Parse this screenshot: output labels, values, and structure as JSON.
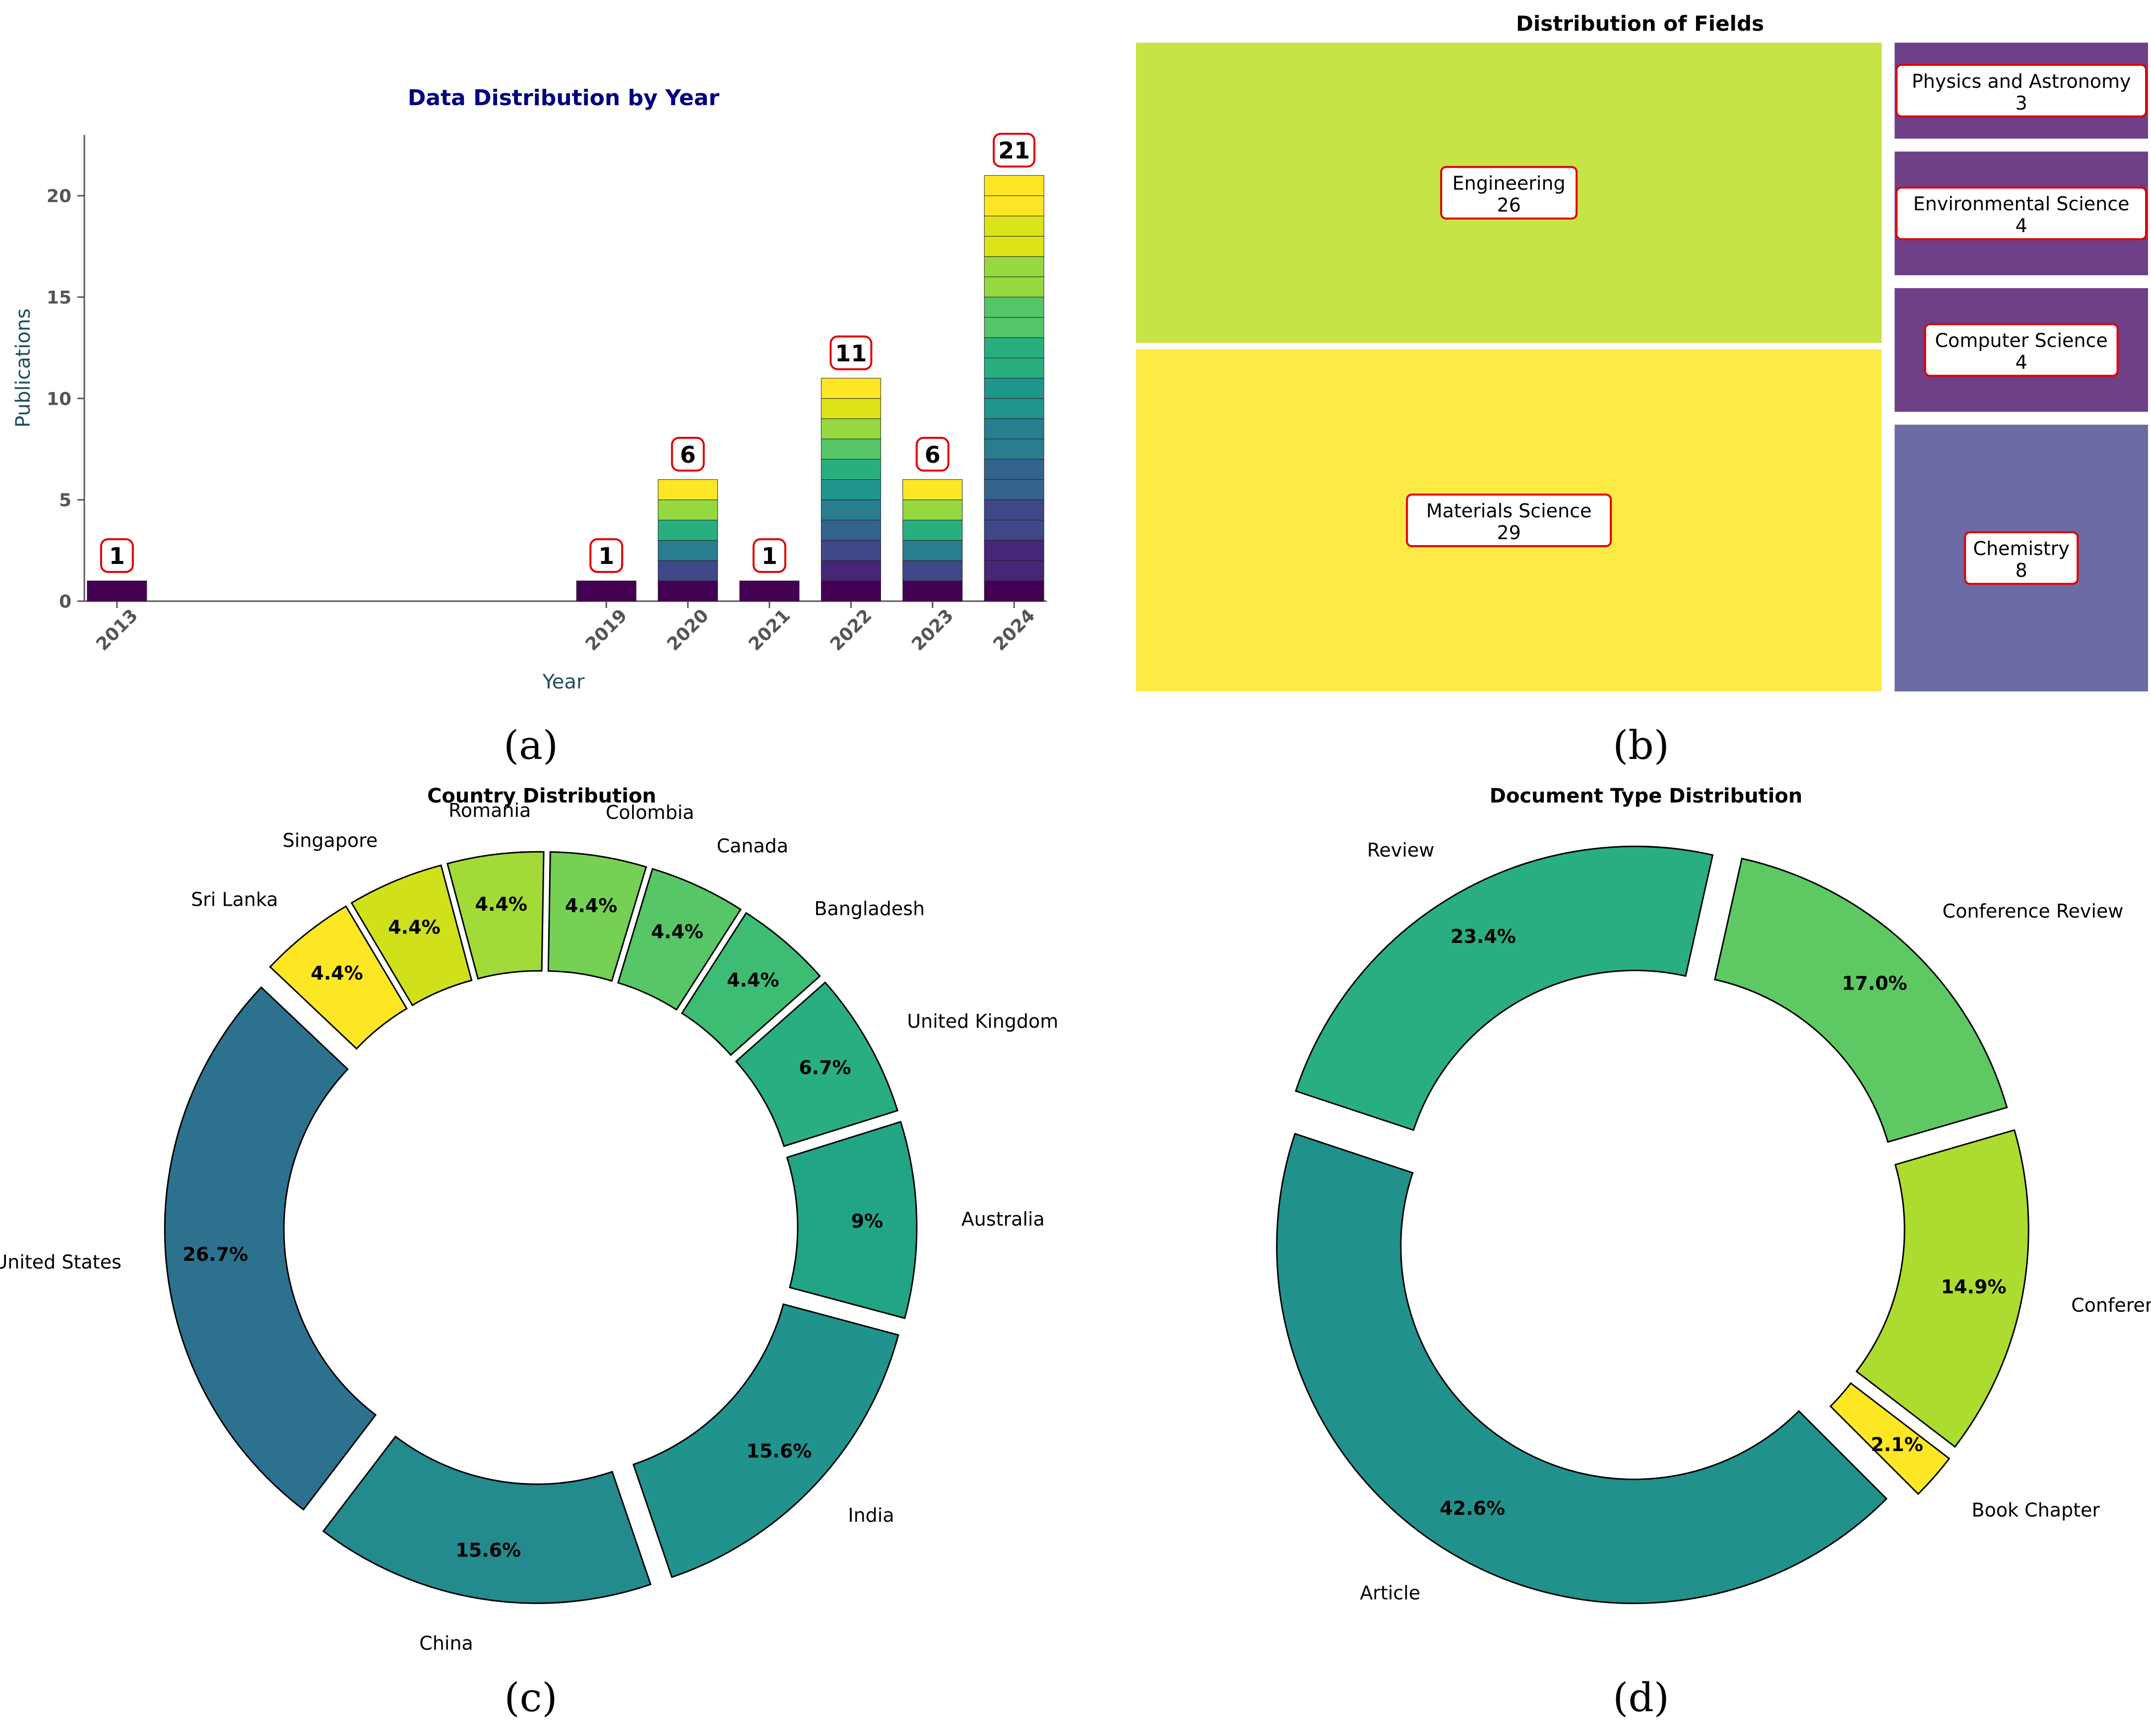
{
  "chart_data": [
    {
      "panel": "(a)",
      "type": "bar",
      "title": "Data Distribution by Year",
      "xlabel": "Year",
      "ylabel": "Publications",
      "categories": [
        "2013",
        "2019",
        "2020",
        "2021",
        "2022",
        "2023",
        "2024"
      ],
      "x": [
        2013,
        2019,
        2020,
        2021,
        2022,
        2023,
        2024
      ],
      "values": [
        1,
        1,
        6,
        1,
        11,
        6,
        21
      ],
      "ylim": [
        0,
        23
      ],
      "yticks": [
        "0",
        "5",
        "10",
        "15",
        "20"
      ],
      "ytick_values": [
        0,
        5,
        10,
        15,
        20
      ],
      "title_color": "#000080",
      "label_color": "#1f4e5f"
    },
    {
      "panel": "(b)",
      "type": "treemap",
      "title": "Distribution of Fields",
      "items": [
        {
          "label": "Materials Science",
          "value": 29,
          "color": "#fde725"
        },
        {
          "label": "Engineering",
          "value": 26,
          "color": "#bddf26"
        },
        {
          "label": "Chemistry",
          "value": 8,
          "color": "#5b5b9b"
        },
        {
          "label": "Computer Science",
          "value": 4,
          "color": "#5f2a7a"
        },
        {
          "label": "Environmental Science",
          "value": 4,
          "color": "#5f2a7a"
        },
        {
          "label": "Physics and Astronomy",
          "value": 3,
          "color": "#5f2a7a"
        }
      ]
    },
    {
      "panel": "(c)",
      "type": "pie",
      "title": "Country Distribution",
      "slices": [
        {
          "label": "Australia",
          "value": 9,
          "pct": "9%",
          "color": "#21a585"
        },
        {
          "label": "United Kingdom",
          "value": 6.7,
          "pct": "6.7%",
          "color": "#29af7f"
        },
        {
          "label": "Bangladesh",
          "value": 4.4,
          "pct": "4.4%",
          "color": "#3dbc74"
        },
        {
          "label": "Canada",
          "value": 4.4,
          "pct": "4.4%",
          "color": "#56c667"
        },
        {
          "label": "Colombia",
          "value": 4.4,
          "pct": "4.4%",
          "color": "#75d054"
        },
        {
          "label": "Romania",
          "value": 4.4,
          "pct": "4.4%",
          "color": "#a2da37"
        },
        {
          "label": "Singapore",
          "value": 4.4,
          "pct": "4.4%",
          "color": "#d0e11c"
        },
        {
          "label": "Sri Lanka",
          "value": 4.4,
          "pct": "4.4%",
          "color": "#fde725"
        },
        {
          "label": "United States",
          "value": 26.7,
          "pct": "26.7%",
          "color": "#2c728e"
        },
        {
          "label": "China",
          "value": 15.6,
          "pct": "15.6%",
          "color": "#238a8d"
        },
        {
          "label": "India",
          "value": 15.6,
          "pct": "15.6%",
          "color": "#20938c"
        }
      ]
    },
    {
      "panel": "(d)",
      "type": "pie",
      "title": "Document Type Distribution",
      "slices": [
        {
          "label": "Conference Review",
          "value": 17.0,
          "pct": "17.0%",
          "color": "#5ec962"
        },
        {
          "label": "Review",
          "value": 23.4,
          "pct": "23.4%",
          "color": "#29af7f"
        },
        {
          "label": "Article",
          "value": 42.6,
          "pct": "42.6%",
          "color": "#21918c"
        },
        {
          "label": "Book Chapter",
          "value": 2.1,
          "pct": "2.1%",
          "color": "#fde725"
        },
        {
          "label": "Conference Paper",
          "value": 14.9,
          "pct": "14.9%",
          "color": "#addc30"
        }
      ]
    }
  ],
  "captions": [
    "(a)",
    "(b)",
    "(c)",
    "(d)"
  ],
  "colors": {
    "bar_palette": [
      "#440154",
      "#482677",
      "#404788",
      "#33638d",
      "#287d8e",
      "#1f968b",
      "#29af7f",
      "#55c667",
      "#95d840",
      "#dce319",
      "#fde725"
    ],
    "annotation_border": "#e00000"
  }
}
